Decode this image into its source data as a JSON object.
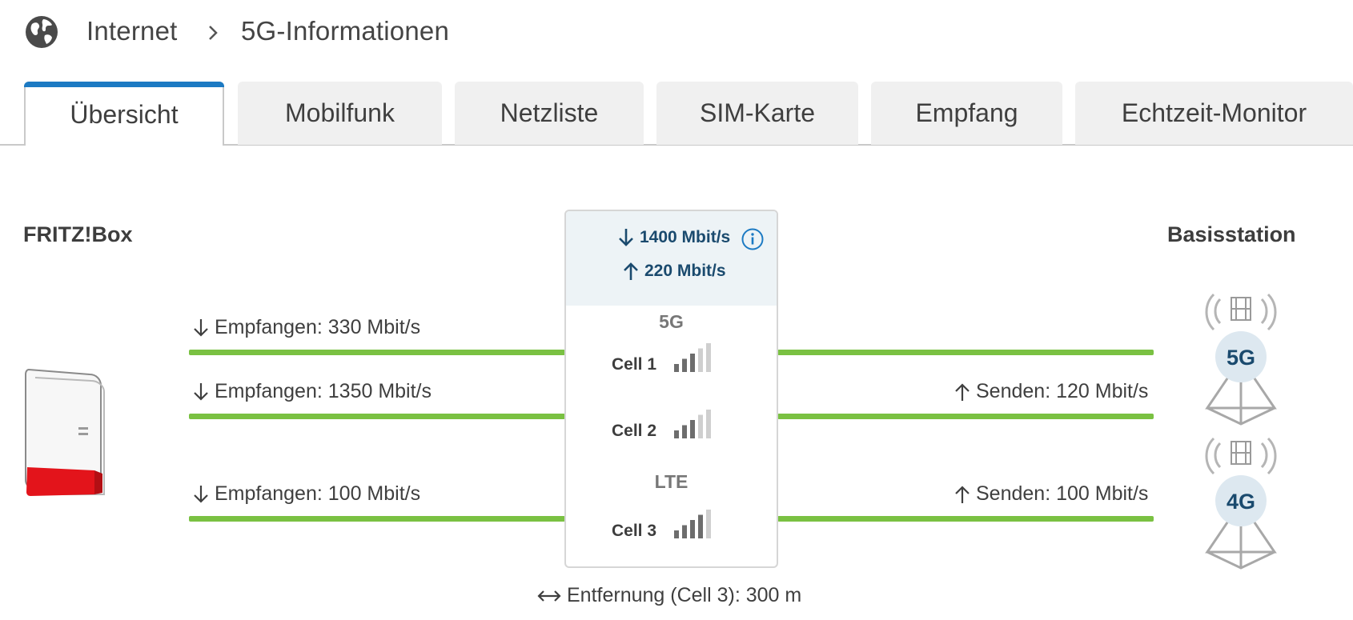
{
  "breadcrumb": {
    "icon": "globe-icon",
    "items": [
      "Internet",
      "5G-Informationen"
    ]
  },
  "tabs": [
    "Übersicht",
    "Mobilfunk",
    "Netzliste",
    "SIM-Karte",
    "Empfang",
    "Echtzeit-Monitor"
  ],
  "active_tab": "Übersicht",
  "labels": {
    "device": "FRITZ!Box",
    "station": "Basisstation"
  },
  "summary": {
    "down": "1400 Mbit/s",
    "up": "220 Mbit/s"
  },
  "networks": {
    "nr": "5G",
    "lte": "LTE"
  },
  "cells": [
    {
      "name": "Cell 1",
      "signal_bars": 3,
      "max_bars": 5
    },
    {
      "name": "Cell 2",
      "signal_bars": 3,
      "max_bars": 5
    },
    {
      "name": "Cell 3",
      "signal_bars": 4,
      "max_bars": 5
    }
  ],
  "links": [
    {
      "down": "Empfangen: 330 Mbit/s",
      "up": ""
    },
    {
      "down": "Empfangen: 1350 Mbit/s",
      "up": "Senden: 120 Mbit/s"
    },
    {
      "down": "Empfangen: 100 Mbit/s",
      "up": "Senden: 100 Mbit/s"
    }
  ],
  "stations": [
    "5G",
    "4G"
  ],
  "distance": "Entfernung (Cell 3): 300 m",
  "colors": {
    "accent": "#1c7ac3",
    "line": "#7ac142",
    "speed_text": "#1a4a6e",
    "fritzbox_red": "#e3141b"
  }
}
